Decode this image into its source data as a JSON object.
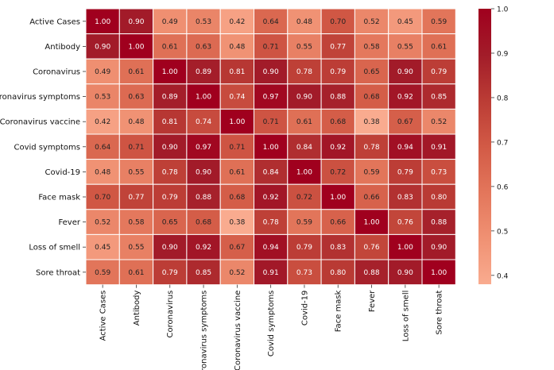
{
  "chart_data": {
    "type": "heatmap",
    "title": "",
    "xlabel": "",
    "ylabel": "",
    "labels": [
      "Active Cases",
      "Antibody",
      "Coronavirus",
      "Coronavirus symptoms",
      "Coronavirus vaccine",
      "Covid symptoms",
      "Covid-19",
      "Face mask",
      "Fever",
      "Loss of smell",
      "Sore throat"
    ],
    "values": [
      [
        1.0,
        0.9,
        0.49,
        0.53,
        0.42,
        0.64,
        0.48,
        0.7,
        0.52,
        0.45,
        0.59
      ],
      [
        0.9,
        1.0,
        0.61,
        0.63,
        0.48,
        0.71,
        0.55,
        0.77,
        0.58,
        0.55,
        0.61
      ],
      [
        0.49,
        0.61,
        1.0,
        0.89,
        0.81,
        0.9,
        0.78,
        0.79,
        0.65,
        0.9,
        0.79
      ],
      [
        0.53,
        0.63,
        0.89,
        1.0,
        0.74,
        0.97,
        0.9,
        0.88,
        0.68,
        0.92,
        0.85
      ],
      [
        0.42,
        0.48,
        0.81,
        0.74,
        1.0,
        0.71,
        0.61,
        0.68,
        0.38,
        0.67,
        0.52
      ],
      [
        0.64,
        0.71,
        0.9,
        0.97,
        0.71,
        1.0,
        0.84,
        0.92,
        0.78,
        0.94,
        0.91
      ],
      [
        0.48,
        0.55,
        0.78,
        0.9,
        0.61,
        0.84,
        1.0,
        0.72,
        0.59,
        0.79,
        0.73
      ],
      [
        0.7,
        0.77,
        0.79,
        0.88,
        0.68,
        0.92,
        0.72,
        1.0,
        0.66,
        0.83,
        0.8
      ],
      [
        0.52,
        0.58,
        0.65,
        0.68,
        0.38,
        0.78,
        0.59,
        0.66,
        1.0,
        0.76,
        0.88
      ],
      [
        0.45,
        0.55,
        0.9,
        0.92,
        0.67,
        0.94,
        0.79,
        0.83,
        0.76,
        1.0,
        0.9
      ],
      [
        0.59,
        0.61,
        0.79,
        0.85,
        0.52,
        0.91,
        0.73,
        0.8,
        0.88,
        0.9,
        1.0
      ]
    ],
    "colorbar": {
      "range": [
        0.38,
        1.0
      ],
      "ticks": [
        0.4,
        0.5,
        0.6,
        0.7,
        0.8,
        0.9,
        1.0
      ],
      "tick_labels": [
        "0.4",
        "0.5",
        "0.6",
        "0.7",
        "0.8",
        "0.9",
        "1.0"
      ],
      "colormap": [
        "#f9ab8f",
        "#f09173",
        "#e3765b",
        "#d25a46",
        "#bb3c35",
        "#a21c29",
        "#a0001e"
      ]
    },
    "grid_lines": "white",
    "legend": "colorbar-right"
  }
}
